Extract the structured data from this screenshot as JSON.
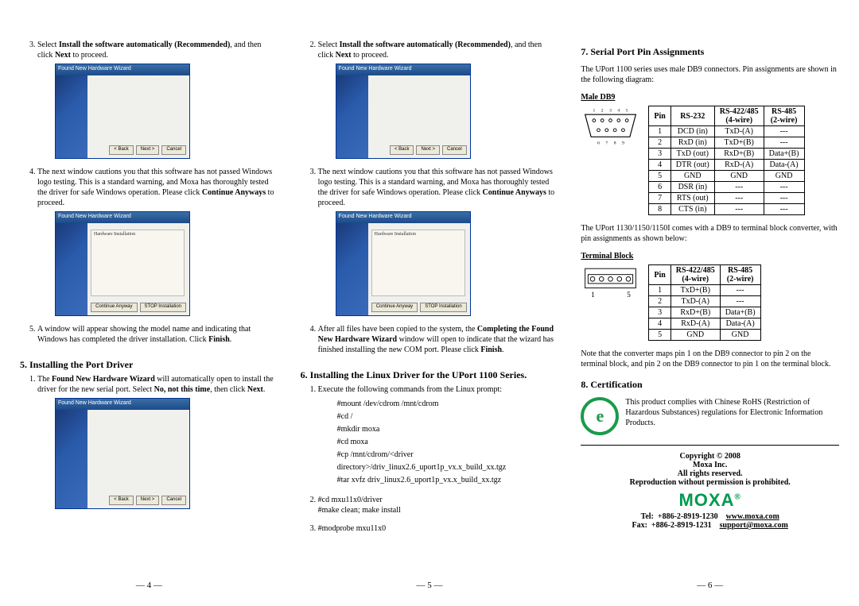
{
  "pages": {
    "p4": {
      "num": "— 4 —"
    },
    "p5": {
      "num": "— 5 —"
    },
    "p6": {
      "num": "— 6 —"
    }
  },
  "col1": {
    "step3": {
      "pre": "Select ",
      "bold": "Install the software automatically (Recommended)",
      "post": ", and then click ",
      "bold2": "Next",
      "post2": " to proceed."
    },
    "step4": {
      "pre": "The next window cautions you that this software has not passed Windows logo testing. This is a standard warning, and Moxa has thoroughly tested the driver for safe Windows operation. Please click ",
      "bold": "Continue Anyways",
      "post": " to proceed."
    },
    "step5": {
      "pre": "A window will appear showing the model name and indicating that Windows has completed the driver installation. Click ",
      "bold": "Finish",
      "post": "."
    },
    "section5": "5. Installing the Port Driver",
    "port1": {
      "a": "The ",
      "b": "Found New Hardware Wizard",
      "c": " will automatically open to install the driver for the new serial port. Select ",
      "d": "No, not this time",
      "e": ", then click ",
      "f": "Next",
      "g": "."
    }
  },
  "shots": {
    "wizard_title": "Found New Hardware Wizard",
    "hw_install_title": "Hardware Installation",
    "back": "< Back",
    "next": "Next >",
    "cancel": "Cancel",
    "cont": "Continue Anyway",
    "stop": "STOP Installation"
  },
  "col2": {
    "step2": {
      "pre": "Select ",
      "bold": "Install the software automatically (Recommended)",
      "post": ", and then click ",
      "bold2": "Next",
      "post2": " to proceed."
    },
    "step3": {
      "pre": "The next window cautions you that this software has not passed Windows logo testing. This is a standard warning, and Moxa has thoroughly tested the driver for safe Windows operation. Please click ",
      "bold": "Continue Anyways",
      "post": " to proceed."
    },
    "step4": {
      "a": "After all files have been copied to the system, the ",
      "b": "Completing the Found New Hardware Wizard",
      "c": " window will open to indicate that the wizard has finished installing the new COM port. Please click ",
      "d": "Finish",
      "e": "."
    },
    "section6": "6. Installing the Linux Driver for the UPort 1100 Series.",
    "li1": "Execute the following commands from the Linux prompt:",
    "cmds1": "#mount /dev/cdrom /mnt/cdrom\n#cd /\n#mkdir moxa\n#cd moxa\n#cp /mnt/cdrom/<driver\ndirectory>/driv_linux2.6_uport1p_vx.x_build_xx.tgz\n#tar xvfz driv_linux2.6_uport1p_vx.x_build_xx.tgz",
    "li2": "#cd mxu11x0/driver\n#make clean; make install",
    "li3": "#modprobe mxu11x0"
  },
  "col3": {
    "section7": "7. Serial Port Pin Assignments",
    "intro7": "The UPort 1100 series uses male DB9 connectors. Pin assignments are shown in the following diagram:",
    "male_db9": "Male DB9",
    "db9_numbers": [
      "1",
      "2",
      "3",
      "4",
      "5",
      "6",
      "7",
      "8",
      "9"
    ],
    "pin_table": {
      "headers": [
        "Pin",
        "RS-232",
        "RS-422/485 (4-wire)",
        "RS-485 (2-wire)"
      ],
      "rows": [
        [
          "1",
          "DCD (in)",
          "TxD-(A)",
          "---"
        ],
        [
          "2",
          "RxD (in)",
          "TxD+(B)",
          "---"
        ],
        [
          "3",
          "TxD (out)",
          "RxD+(B)",
          "Data+(B)"
        ],
        [
          "4",
          "DTR (out)",
          "RxD-(A)",
          "Data-(A)"
        ],
        [
          "5",
          "GND",
          "GND",
          "GND"
        ],
        [
          "6",
          "DSR (in)",
          "---",
          "---"
        ],
        [
          "7",
          "RTS (out)",
          "---",
          "---"
        ],
        [
          "8",
          "CTS (in)",
          "---",
          "---"
        ]
      ]
    },
    "tb_note": "The UPort 1130/1150/1150I comes with a DB9 to terminal block converter, with pin assignments as shown below:",
    "terminal_block": "Terminal Block",
    "tb_nums": [
      "1",
      "5"
    ],
    "tb_table": {
      "headers": [
        "Pin",
        "RS-422/485 (4-wire)",
        "RS-485 (2-wire)"
      ],
      "rows": [
        [
          "1",
          "TxD+(B)",
          "---"
        ],
        [
          "2",
          "TxD-(A)",
          "---"
        ],
        [
          "3",
          "RxD+(B)",
          "Data+(B)"
        ],
        [
          "4",
          "RxD-(A)",
          "Data-(A)"
        ],
        [
          "5",
          "GND",
          "GND"
        ]
      ]
    },
    "map_note": "Note that the converter maps pin 1 on the DB9 connector to pin 2 on the terminal block, and pin 2 on the DB9 connector to pin 1 on the terminal block.",
    "section8": "8. Certification",
    "cert_text": "This product complies with Chinese RoHS (Restriction of Hazardous Substances) regulations for Electronic Information Products.",
    "copyright": "Copyright © 2008",
    "moxa_inc": "Moxa Inc.",
    "rights": "All rights reserved.",
    "repro": "Reproduction without permission is prohibited.",
    "logo": "MOXA",
    "logo_sup": "®",
    "tel_label": "Tel:",
    "tel": "+886-2-8919-1230",
    "fax_label": "Fax:",
    "fax": "+886-2-8919-1231",
    "www": "www.moxa.com",
    "email": "support@moxa.com"
  }
}
